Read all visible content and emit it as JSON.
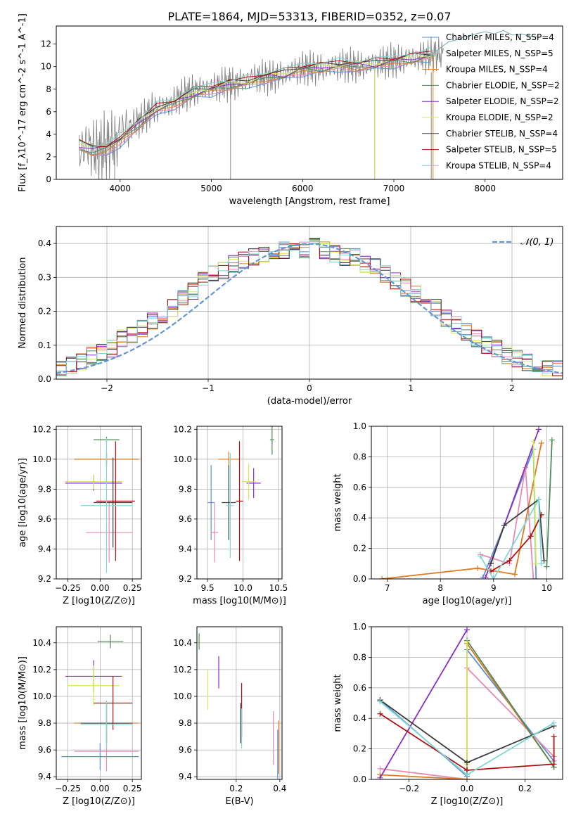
{
  "figure": {
    "title": "PLATE=1864, MJD=53313, FIBERID=0352, z=0.07"
  },
  "colors": {
    "Chabrier MILES": "#5b8fd8",
    "Salpeter MILES": "#e88bb4",
    "Kroupa MILES": "#e07a1f",
    "Chabrier ELODIE": "#4f8a5b",
    "Salpeter ELODIE": "#8c2fbf",
    "Kroupa ELODIE": "#d4ea5a",
    "Chabrier STELIB": "#3d3d3d",
    "Salpeter STELIB": "#b01010",
    "Kroupa STELIB": "#7fd8d8",
    "data": "#7f7f7f",
    "normal": "#6495d6"
  },
  "chart_data": [
    {
      "id": "spectrum",
      "type": "line",
      "xlabel": "wavelength [Angstrom, rest frame]",
      "ylabel": "Flux [f_λ10^-17 erg cm^-2 s^-1 A^-1]",
      "xlim": [
        3300,
        8850
      ],
      "ylim": [
        0,
        13.6
      ],
      "xticks": [
        4000,
        5000,
        6000,
        7000,
        8000
      ],
      "yticks": [
        0,
        2,
        4,
        6,
        8,
        10,
        12
      ],
      "grid": false,
      "legend_position": "right",
      "data_series": {
        "name": "data",
        "x": [
          3550,
          3650,
          3750,
          3850,
          3950,
          4050,
          4150,
          4250,
          4350,
          4450,
          4550,
          4650,
          4750,
          4850,
          4950,
          5050,
          5150,
          5250,
          5350,
          5450,
          5550,
          5650,
          5750,
          5850,
          5950,
          6050,
          6150,
          6250,
          6350,
          6450,
          6550,
          6650,
          6750,
          6850,
          6950,
          7050,
          7150,
          7250,
          7350,
          7450
        ],
        "y": [
          2.5,
          3.0,
          2.4,
          2.9,
          3.4,
          4.4,
          4.9,
          5.4,
          6.2,
          6.4,
          6.6,
          7.3,
          7.7,
          7.9,
          8.1,
          8.2,
          8.5,
          8.4,
          8.7,
          9.0,
          9.1,
          9.0,
          9.2,
          9.5,
          9.7,
          9.9,
          9.8,
          9.9,
          10.0,
          10.1,
          10.1,
          10.0,
          10.2,
          10.3,
          10.5,
          10.5,
          10.7,
          10.8,
          10.9,
          11.1
        ]
      },
      "model_series": {
        "x": [
          3550,
          3700,
          3850,
          4000,
          4200,
          4400,
          4600,
          4800,
          5000,
          5200,
          5400,
          5600,
          5800,
          6000,
          6200,
          6400,
          6600,
          6800,
          7000,
          7200,
          7400
        ],
        "y": [
          3.0,
          2.6,
          2.8,
          3.5,
          4.9,
          6.2,
          6.8,
          7.6,
          8.0,
          8.4,
          8.6,
          9.1,
          9.3,
          9.8,
          9.9,
          10.1,
          10.1,
          10.2,
          10.5,
          10.7,
          11.0
        ]
      },
      "extended_series": {
        "name": "Kroupa STELIB",
        "x": [
          7400,
          7500,
          7600,
          7700,
          7800,
          7900,
          8000,
          8100,
          8200,
          8300,
          8400,
          8500,
          8600
        ],
        "y": [
          11.0,
          11.6,
          12.2,
          12.4,
          12.7,
          12.9,
          13.1,
          12.9,
          13.2,
          12.8,
          12.9,
          12.7,
          12.6
        ]
      },
      "legend": [
        "Chabrier MILES, N_SSP=4",
        "Salpeter MILES, N_SSP=5",
        "Kroupa MILES, N_SSP=4",
        "Chabrier ELODIE, N_SSP=2",
        "Salpeter ELODIE, N_SSP=2",
        "Kroupa ELODIE, N_SSP=2",
        "Chabrier STELIB, N_SSP=4",
        "Salpeter STELIB, N_SSP=5",
        "Kroupa STELIB, N_SSP=4"
      ]
    },
    {
      "id": "residuals",
      "type": "line",
      "xlabel": "(data-model)/error",
      "ylabel": "Normed distribution",
      "xlim": [
        -2.5,
        2.5
      ],
      "ylim": [
        0,
        0.45
      ],
      "xticks": [
        -2,
        -1,
        0,
        1,
        2
      ],
      "yticks": [
        0.0,
        0.1,
        0.2,
        0.3,
        0.4
      ],
      "grid": true,
      "legend_position": "top-right",
      "legend": [
        "𝒩(0, 1)"
      ],
      "bin_centers": [
        -2.45,
        -2.35,
        -2.25,
        -2.15,
        -2.05,
        -1.95,
        -1.85,
        -1.75,
        -1.65,
        -1.55,
        -1.45,
        -1.35,
        -1.25,
        -1.15,
        -1.05,
        -0.95,
        -0.85,
        -0.75,
        -0.65,
        -0.55,
        -0.45,
        -0.35,
        -0.25,
        -0.15,
        -0.05,
        0.05,
        0.15,
        0.25,
        0.35,
        0.45,
        0.55,
        0.65,
        0.75,
        0.85,
        0.95,
        1.05,
        1.15,
        1.25,
        1.35,
        1.45,
        1.55,
        1.65,
        1.75,
        1.85,
        1.95,
        2.05,
        2.15,
        2.25,
        2.35,
        2.45
      ],
      "hist_base": [
        0.03,
        0.04,
        0.05,
        0.07,
        0.08,
        0.09,
        0.12,
        0.13,
        0.15,
        0.17,
        0.19,
        0.21,
        0.24,
        0.26,
        0.29,
        0.31,
        0.32,
        0.34,
        0.35,
        0.36,
        0.37,
        0.38,
        0.38,
        0.39,
        0.38,
        0.39,
        0.38,
        0.37,
        0.36,
        0.36,
        0.34,
        0.33,
        0.31,
        0.29,
        0.27,
        0.25,
        0.22,
        0.21,
        0.18,
        0.16,
        0.14,
        0.12,
        0.1,
        0.09,
        0.07,
        0.06,
        0.05,
        0.04,
        0.03,
        0.03
      ]
    },
    {
      "id": "age-vs-Z",
      "type": "scatter",
      "xlabel": "Z [log10(Z/Z⊙)]",
      "ylabel": "age [log10(age/yr)]",
      "xlim": [
        -0.34,
        0.32
      ],
      "ylim": [
        9.2,
        10.22
      ],
      "xticks": [
        -0.25,
        0.0,
        0.25
      ],
      "xtick_labels": [
        "−0.25",
        "0.00",
        "0.25"
      ],
      "yticks": [
        9.2,
        9.4,
        9.6,
        9.8,
        10.0,
        10.2
      ],
      "grid": true,
      "points": [
        {
          "x": 0.05,
          "xerr": 0.25,
          "y": 10.0,
          "yerr": 0.04,
          "series": "Chabrier MILES"
        },
        {
          "x": 0.07,
          "xerr": 0.18,
          "y": 9.51,
          "yerr": 0.2,
          "series": "Salpeter MILES"
        },
        {
          "x": 0.05,
          "xerr": 0.25,
          "y": 10.0,
          "yerr": 0.05,
          "series": "Kroupa MILES"
        },
        {
          "x": 0.05,
          "xerr": 0.1,
          "y": 10.13,
          "yerr": 0.02,
          "series": "Chabrier ELODIE"
        },
        {
          "x": -0.05,
          "xerr": 0.22,
          "y": 9.84,
          "yerr": 0.05,
          "series": "Salpeter ELODIE"
        },
        {
          "x": -0.05,
          "xerr": 0.22,
          "y": 9.85,
          "yerr": 0.05,
          "series": "Kroupa ELODIE"
        },
        {
          "x": 0.1,
          "xerr": 0.15,
          "y": 9.71,
          "yerr": 0.3,
          "series": "Chabrier STELIB"
        },
        {
          "x": 0.12,
          "xerr": 0.15,
          "y": 9.72,
          "yerr": 0.4,
          "series": "Salpeter STELIB"
        },
        {
          "x": 0.05,
          "xerr": 0.2,
          "y": 9.69,
          "yerr": 0.45,
          "series": "Kroupa STELIB"
        }
      ]
    },
    {
      "id": "age-vs-mass",
      "type": "scatter",
      "xlabel": "mass [log10(M/M⊙)]",
      "ylabel": "",
      "xlim": [
        9.35,
        10.55
      ],
      "ylim": [
        9.2,
        10.22
      ],
      "xticks": [
        9.5,
        10.0,
        10.5
      ],
      "yticks": [
        9.2,
        9.4,
        9.6,
        9.8,
        10.0,
        10.2
      ],
      "grid": true,
      "points": [
        {
          "x": 9.55,
          "xerr": 0.05,
          "y": 9.71,
          "yerr": 0.25,
          "series": "Chabrier MILES"
        },
        {
          "x": 9.6,
          "xerr": 0.05,
          "y": 9.51,
          "yerr": 0.2,
          "series": "Salpeter MILES"
        },
        {
          "x": 9.8,
          "xerr": 0.15,
          "y": 10.0,
          "yerr": 0.05,
          "series": "Kroupa MILES"
        },
        {
          "x": 10.41,
          "xerr": 0.03,
          "y": 10.13,
          "yerr": 0.1,
          "series": "Chabrier ELODIE"
        },
        {
          "x": 10.15,
          "xerr": 0.1,
          "y": 9.84,
          "yerr": 0.1,
          "series": "Salpeter ELODIE"
        },
        {
          "x": 10.08,
          "xerr": 0.1,
          "y": 9.85,
          "yerr": 0.12,
          "series": "Kroupa ELODIE"
        },
        {
          "x": 9.8,
          "xerr": 0.1,
          "y": 9.71,
          "yerr": 0.25,
          "series": "Chabrier STELIB"
        },
        {
          "x": 9.95,
          "xerr": 0.05,
          "y": 9.72,
          "yerr": 0.4,
          "series": "Salpeter STELIB"
        },
        {
          "x": 9.82,
          "xerr": 0.05,
          "y": 9.69,
          "yerr": 0.35,
          "series": "Kroupa STELIB"
        }
      ]
    },
    {
      "id": "mass-weight-vs-age",
      "type": "line",
      "xlabel": "age [log10(age/yr)]",
      "ylabel": "mass weight",
      "xlim": [
        6.7,
        10.3
      ],
      "ylim": [
        0,
        1.0
      ],
      "xticks": [
        7,
        8,
        9,
        10
      ],
      "yticks": [
        0.0,
        0.2,
        0.4,
        0.6,
        0.8,
        1.0
      ],
      "grid": true,
      "series": [
        {
          "name": "Chabrier MILES",
          "x": [
            8.8,
            9.2,
            9.75,
            9.8
          ],
          "y": [
            0.01,
            0.35,
            0.85,
            0.0
          ]
        },
        {
          "name": "Salpeter MILES",
          "x": [
            8.75,
            9.3,
            9.6,
            9.75
          ],
          "y": [
            0.16,
            0.1,
            0.73,
            0.0
          ]
        },
        {
          "name": "Kroupa MILES",
          "x": [
            6.9,
            8.7,
            9.4,
            9.9
          ],
          "y": [
            0.0,
            0.07,
            0.03,
            0.89
          ]
        },
        {
          "name": "Chabrier ELODIE",
          "x": [
            10.0,
            10.1
          ],
          "y": [
            0.08,
            0.91
          ]
        },
        {
          "name": "Salpeter ELODIE",
          "x": [
            8.85,
            9.85
          ],
          "y": [
            0.01,
            0.98
          ]
        },
        {
          "name": "Kroupa ELODIE",
          "x": [
            9.75,
            9.8
          ],
          "y": [
            0.9,
            0.1
          ]
        },
        {
          "name": "Chabrier STELIB",
          "x": [
            8.95,
            9.2,
            9.85,
            9.95
          ],
          "y": [
            0.1,
            0.35,
            0.52,
            0.12
          ]
        },
        {
          "name": "Salpeter STELIB",
          "x": [
            8.95,
            9.3,
            9.7,
            9.9
          ],
          "y": [
            0.05,
            0.12,
            0.28,
            0.42
          ]
        },
        {
          "name": "Kroupa STELIB",
          "x": [
            8.75,
            9.0,
            9.85,
            9.9
          ],
          "y": [
            0.15,
            0.0,
            0.52,
            0.1
          ]
        }
      ]
    },
    {
      "id": "mass-vs-Z",
      "type": "scatter",
      "xlabel": "Z [log10(Z/Z⊙)]",
      "ylabel": "mass [log10(M/M⊙)]",
      "xlim": [
        -0.34,
        0.32
      ],
      "ylim": [
        9.38,
        10.52
      ],
      "xticks": [
        -0.25,
        0.0,
        0.25
      ],
      "xtick_labels": [
        "−0.25",
        "0.00",
        "0.25"
      ],
      "yticks": [
        9.4,
        9.6,
        9.8,
        10.0,
        10.2,
        10.4
      ],
      "grid": true,
      "points": [
        {
          "x": 0.0,
          "xerr": 0.3,
          "y": 9.55,
          "yerr": 0.1,
          "series": "Chabrier MILES"
        },
        {
          "x": 0.05,
          "xerr": 0.25,
          "y": 9.59,
          "yerr": 0.15,
          "series": "Salpeter MILES"
        },
        {
          "x": 0.05,
          "xerr": 0.25,
          "y": 9.8,
          "yerr": 0.15,
          "series": "Kroupa MILES"
        },
        {
          "x": 0.08,
          "xerr": 0.1,
          "y": 10.41,
          "yerr": 0.05,
          "series": "Chabrier ELODIE"
        },
        {
          "x": -0.05,
          "xerr": 0.22,
          "y": 10.15,
          "yerr": 0.12,
          "series": "Salpeter ELODIE"
        },
        {
          "x": -0.05,
          "xerr": 0.2,
          "y": 10.08,
          "yerr": 0.15,
          "series": "Kroupa ELODIE"
        },
        {
          "x": 0.05,
          "xerr": 0.2,
          "y": 9.8,
          "yerr": 0.15,
          "series": "Chabrier STELIB"
        },
        {
          "x": 0.1,
          "xerr": 0.15,
          "y": 9.95,
          "yerr": 0.2,
          "series": "Salpeter STELIB"
        },
        {
          "x": 0.05,
          "xerr": 0.2,
          "y": 9.79,
          "yerr": 0.18,
          "series": "Kroupa STELIB"
        }
      ]
    },
    {
      "id": "mass-vs-EBV",
      "type": "scatter",
      "xlabel": "E(B-V)",
      "ylabel": "",
      "xlim": [
        0.02,
        0.41
      ],
      "ylim": [
        9.38,
        10.52
      ],
      "xticks": [
        0.2,
        0.4
      ],
      "yticks": [
        9.4,
        9.6,
        9.8,
        10.0,
        10.2,
        10.4
      ],
      "grid": true,
      "points": [
        {
          "x": 0.39,
          "xerr": 0.0,
          "y": 9.55,
          "yerr": 0.2,
          "series": "Chabrier MILES"
        },
        {
          "x": 0.37,
          "xerr": 0.0,
          "y": 9.69,
          "yerr": 0.2,
          "series": "Salpeter MILES"
        },
        {
          "x": 0.395,
          "xerr": 0.0,
          "y": 9.62,
          "yerr": 0.2,
          "series": "Kroupa MILES"
        },
        {
          "x": 0.03,
          "xerr": 0.0,
          "y": 10.41,
          "yerr": 0.06,
          "series": "Chabrier ELODIE"
        },
        {
          "x": 0.12,
          "xerr": 0.0,
          "y": 10.18,
          "yerr": 0.12,
          "series": "Salpeter ELODIE"
        },
        {
          "x": 0.07,
          "xerr": 0.0,
          "y": 10.05,
          "yerr": 0.15,
          "series": "Kroupa ELODIE"
        },
        {
          "x": 0.22,
          "xerr": 0.0,
          "y": 9.8,
          "yerr": 0.15,
          "series": "Chabrier STELIB"
        },
        {
          "x": 0.225,
          "xerr": 0.0,
          "y": 9.9,
          "yerr": 0.2,
          "series": "Salpeter STELIB"
        },
        {
          "x": 0.225,
          "xerr": 0.0,
          "y": 9.76,
          "yerr": 0.15,
          "series": "Kroupa STELIB"
        }
      ]
    },
    {
      "id": "mass-weight-vs-Z",
      "type": "line",
      "xlabel": "Z [log10(Z/Z⊙)]",
      "ylabel": "mass weight",
      "xlim": [
        -0.33,
        0.33
      ],
      "ylim": [
        0,
        1.0
      ],
      "xticks": [
        -0.2,
        0.0,
        0.2
      ],
      "xtick_labels": [
        "−0.2",
        "0.0",
        "0.2"
      ],
      "yticks": [
        0.0,
        0.2,
        0.4,
        0.6,
        0.8,
        1.0
      ],
      "grid": true,
      "series": [
        {
          "name": "Chabrier MILES",
          "x": [
            -0.3,
            0.0,
            0.0,
            0.3
          ],
          "y": [
            0.52,
            0.02,
            0.85,
            0.12
          ]
        },
        {
          "name": "Salpeter MILES",
          "x": [
            -0.3,
            0.0,
            0.0,
            0.3
          ],
          "y": [
            0.07,
            0.0,
            0.73,
            0.15
          ]
        },
        {
          "name": "Kroupa MILES",
          "x": [
            -0.3,
            0.0,
            0.0,
            0.3
          ],
          "y": [
            0.03,
            0.0,
            0.89,
            0.08
          ]
        },
        {
          "name": "Chabrier ELODIE",
          "x": [
            0.0,
            0.3
          ],
          "y": [
            0.91,
            0.08
          ]
        },
        {
          "name": "Salpeter ELODIE",
          "x": [
            -0.3,
            0.0
          ],
          "y": [
            0.01,
            0.98
          ]
        },
        {
          "name": "Kroupa ELODIE",
          "x": [
            0.0,
            0.0
          ],
          "y": [
            0.9,
            0.1
          ]
        },
        {
          "name": "Chabrier STELIB",
          "x": [
            -0.3,
            0.0,
            0.3
          ],
          "y": [
            0.52,
            0.11,
            0.35
          ]
        },
        {
          "name": "Salpeter STELIB",
          "x": [
            -0.3,
            0.0,
            0.3,
            0.3
          ],
          "y": [
            0.43,
            0.06,
            0.1,
            0.28
          ]
        },
        {
          "name": "Kroupa STELIB",
          "x": [
            -0.3,
            0.0,
            0.3
          ],
          "y": [
            0.51,
            0.03,
            0.37
          ]
        }
      ]
    }
  ]
}
